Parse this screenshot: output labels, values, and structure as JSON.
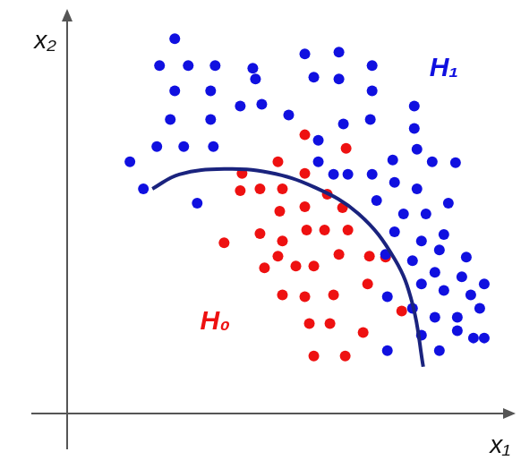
{
  "chart_data": {
    "type": "scatter",
    "x_label": "x₁",
    "y_label": "x₂",
    "xlim": [
      0,
      10
    ],
    "ylim": [
      0,
      9
    ],
    "xticks": [],
    "yticks": [],
    "grid": false,
    "tick_labels": false,
    "series": [
      {
        "name": "H₁",
        "color": "#1010e0",
        "marker": "circle",
        "label_at": [
          8.4,
          7.68
        ],
        "points": [
          [
            2.4,
            8.34
          ],
          [
            2.06,
            7.74
          ],
          [
            2.7,
            7.74
          ],
          [
            3.3,
            7.74
          ],
          [
            4.14,
            7.68
          ],
          [
            5.3,
            8.0
          ],
          [
            6.06,
            8.04
          ],
          [
            6.8,
            7.74
          ],
          [
            2.4,
            7.18
          ],
          [
            3.2,
            7.18
          ],
          [
            4.2,
            7.44
          ],
          [
            5.5,
            7.48
          ],
          [
            6.06,
            7.44
          ],
          [
            6.8,
            7.18
          ],
          [
            2.3,
            6.54
          ],
          [
            3.2,
            6.54
          ],
          [
            3.86,
            6.84
          ],
          [
            4.34,
            6.88
          ],
          [
            4.94,
            6.64
          ],
          [
            6.16,
            6.44
          ],
          [
            6.76,
            6.54
          ],
          [
            7.74,
            6.84
          ],
          [
            2.0,
            5.94
          ],
          [
            2.6,
            5.94
          ],
          [
            3.26,
            5.94
          ],
          [
            5.6,
            6.08
          ],
          [
            1.4,
            5.6
          ],
          [
            5.6,
            5.6
          ],
          [
            5.94,
            5.32
          ],
          [
            6.26,
            5.32
          ],
          [
            6.8,
            5.32
          ],
          [
            7.74,
            6.34
          ],
          [
            7.8,
            5.88
          ],
          [
            7.26,
            5.64
          ],
          [
            8.14,
            5.6
          ],
          [
            8.66,
            5.58
          ],
          [
            7.3,
            5.14
          ],
          [
            7.8,
            5.0
          ],
          [
            1.7,
            5.0
          ],
          [
            2.9,
            4.68
          ],
          [
            6.9,
            4.74
          ],
          [
            7.5,
            4.44
          ],
          [
            8.0,
            4.44
          ],
          [
            8.5,
            4.68
          ],
          [
            7.3,
            4.04
          ],
          [
            7.9,
            3.84
          ],
          [
            8.4,
            3.98
          ],
          [
            7.1,
            3.54
          ],
          [
            7.7,
            3.4
          ],
          [
            8.3,
            3.64
          ],
          [
            8.9,
            3.48
          ],
          [
            8.2,
            3.14
          ],
          [
            8.8,
            3.04
          ],
          [
            9.3,
            2.88
          ],
          [
            7.9,
            2.88
          ],
          [
            8.4,
            2.74
          ],
          [
            9.0,
            2.64
          ],
          [
            7.14,
            2.6
          ],
          [
            7.7,
            2.34
          ],
          [
            8.2,
            2.14
          ],
          [
            8.7,
            2.14
          ],
          [
            9.2,
            2.34
          ],
          [
            8.7,
            1.84
          ],
          [
            9.06,
            1.68
          ],
          [
            9.3,
            1.68
          ],
          [
            7.9,
            1.74
          ],
          [
            8.3,
            1.4
          ],
          [
            7.14,
            1.4
          ]
        ]
      },
      {
        "name": "H₀",
        "color": "#ee1111",
        "marker": "circle",
        "label_at": [
          3.3,
          2.04
        ],
        "points": [
          [
            5.3,
            6.2
          ],
          [
            6.22,
            5.9
          ],
          [
            4.7,
            5.6
          ],
          [
            5.3,
            5.34
          ],
          [
            3.9,
            5.34
          ],
          [
            4.3,
            5.0
          ],
          [
            4.8,
            5.0
          ],
          [
            3.86,
            4.96
          ],
          [
            4.74,
            4.5
          ],
          [
            5.3,
            4.6
          ],
          [
            5.8,
            4.88
          ],
          [
            6.14,
            4.58
          ],
          [
            5.74,
            4.08
          ],
          [
            5.34,
            4.08
          ],
          [
            6.26,
            4.08
          ],
          [
            3.5,
            3.8
          ],
          [
            4.3,
            4.0
          ],
          [
            4.8,
            3.84
          ],
          [
            4.7,
            3.5
          ],
          [
            5.1,
            3.28
          ],
          [
            5.5,
            3.28
          ],
          [
            6.06,
            3.54
          ],
          [
            6.74,
            3.5
          ],
          [
            7.1,
            3.48
          ],
          [
            4.4,
            3.24
          ],
          [
            4.8,
            2.64
          ],
          [
            5.3,
            2.6
          ],
          [
            5.94,
            2.64
          ],
          [
            6.7,
            2.88
          ],
          [
            5.4,
            2.0
          ],
          [
            5.86,
            2.0
          ],
          [
            6.6,
            1.8
          ],
          [
            5.5,
            1.28
          ],
          [
            6.2,
            1.28
          ],
          [
            7.46,
            2.28
          ]
        ]
      }
    ],
    "boundary": {
      "color": "#1a237e",
      "line_style": "solid",
      "x": [
        1.9,
        2.5,
        3.5,
        4.5,
        5.5,
        6.5,
        7.3,
        7.7,
        7.94
      ],
      "y": [
        5.0,
        5.32,
        5.44,
        5.36,
        5.04,
        4.44,
        3.44,
        2.44,
        1.04
      ]
    }
  }
}
